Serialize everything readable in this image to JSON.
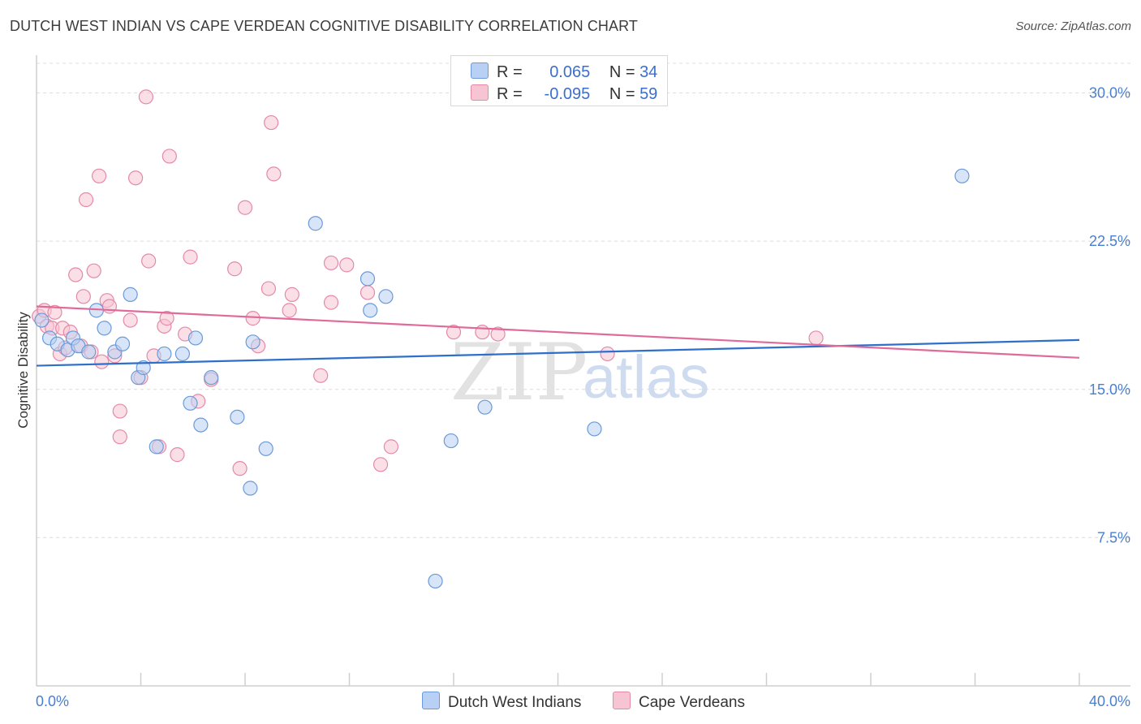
{
  "title": "DUTCH WEST INDIAN VS CAPE VERDEAN COGNITIVE DISABILITY CORRELATION CHART",
  "source": "Source: ZipAtlas.com",
  "colors": {
    "blue_fill": "#b8d0f3",
    "blue_stroke": "#6a9ad8",
    "blue_line": "#2f6fcc",
    "pink_fill": "#f7c4d4",
    "pink_stroke": "#e48aa8",
    "pink_line": "#e06a98",
    "grid": "#dcdcdc",
    "axis_text": "#4a7fd0"
  },
  "legend": {
    "r_label": "R =",
    "n_label": "N =",
    "rows": [
      {
        "r": "0.065",
        "n": "34"
      },
      {
        "r": "-0.095",
        "n": "59"
      }
    ]
  },
  "bottom_legend": [
    "Dutch West Indians",
    "Cape Verdeans"
  ],
  "watermark": {
    "zip": "ZIP",
    "atlas": "atlas"
  },
  "chart_data": {
    "type": "scatter",
    "title": "DUTCH WEST INDIAN VS CAPE VERDEAN COGNITIVE DISABILITY CORRELATION CHART",
    "xlabel": "",
    "ylabel": "Cognitive Disability",
    "xlim": [
      0,
      40
    ],
    "ylim": [
      0,
      31.5
    ],
    "x_tick_labels": [
      "0.0%",
      "40.0%"
    ],
    "y_ticks": [
      7.5,
      15.0,
      22.5,
      30.0
    ],
    "y_tick_labels": [
      "7.5%",
      "15.0%",
      "22.5%",
      "30.0%"
    ],
    "series": [
      {
        "name": "Dutch West Indians",
        "r": 0.065,
        "n": 34,
        "trend": {
          "x": [
            0,
            40
          ],
          "y": [
            16.2,
            17.5
          ]
        },
        "points": [
          [
            0.2,
            18.5
          ],
          [
            0.5,
            17.6
          ],
          [
            0.8,
            17.3
          ],
          [
            1.2,
            17.0
          ],
          [
            1.4,
            17.6
          ],
          [
            1.6,
            17.2
          ],
          [
            2.0,
            16.9
          ],
          [
            2.3,
            19.0
          ],
          [
            2.6,
            18.1
          ],
          [
            3.0,
            16.9
          ],
          [
            3.3,
            17.3
          ],
          [
            3.6,
            19.8
          ],
          [
            3.9,
            15.6
          ],
          [
            4.1,
            16.1
          ],
          [
            4.6,
            12.1
          ],
          [
            4.9,
            16.8
          ],
          [
            5.6,
            16.8
          ],
          [
            5.9,
            14.3
          ],
          [
            6.1,
            17.6
          ],
          [
            6.3,
            13.2
          ],
          [
            6.7,
            15.6
          ],
          [
            7.7,
            13.6
          ],
          [
            8.2,
            10.0
          ],
          [
            8.3,
            17.4
          ],
          [
            8.8,
            12.0
          ],
          [
            10.7,
            23.4
          ],
          [
            12.7,
            20.6
          ],
          [
            12.8,
            19.0
          ],
          [
            13.4,
            19.7
          ],
          [
            15.9,
            12.4
          ],
          [
            17.2,
            14.1
          ],
          [
            21.4,
            13.0
          ],
          [
            35.5,
            25.8
          ],
          [
            15.3,
            5.3
          ]
        ]
      },
      {
        "name": "Cape Verdeans",
        "r": -0.095,
        "n": 59,
        "trend": {
          "x": [
            0,
            40
          ],
          "y": [
            19.2,
            16.6
          ]
        },
        "points": [
          [
            0.1,
            18.7
          ],
          [
            0.3,
            19.0
          ],
          [
            0.4,
            18.2
          ],
          [
            0.6,
            18.1
          ],
          [
            0.7,
            18.9
          ],
          [
            0.9,
            16.8
          ],
          [
            1.0,
            18.1
          ],
          [
            1.1,
            17.1
          ],
          [
            1.3,
            17.9
          ],
          [
            1.5,
            20.8
          ],
          [
            1.7,
            17.2
          ],
          [
            1.8,
            19.7
          ],
          [
            1.9,
            24.6
          ],
          [
            2.1,
            16.9
          ],
          [
            2.2,
            21.0
          ],
          [
            2.4,
            25.8
          ],
          [
            2.5,
            16.4
          ],
          [
            2.7,
            19.5
          ],
          [
            2.8,
            19.2
          ],
          [
            3.0,
            16.7
          ],
          [
            3.2,
            12.6
          ],
          [
            3.2,
            13.9
          ],
          [
            3.6,
            18.5
          ],
          [
            3.8,
            25.7
          ],
          [
            4.0,
            15.6
          ],
          [
            4.2,
            29.8
          ],
          [
            4.3,
            21.5
          ],
          [
            4.5,
            16.7
          ],
          [
            4.7,
            12.1
          ],
          [
            4.9,
            18.2
          ],
          [
            5.0,
            18.6
          ],
          [
            5.1,
            26.8
          ],
          [
            5.4,
            11.7
          ],
          [
            5.7,
            17.8
          ],
          [
            5.9,
            21.7
          ],
          [
            6.2,
            14.4
          ],
          [
            6.7,
            15.5
          ],
          [
            7.6,
            21.1
          ],
          [
            7.8,
            11.0
          ],
          [
            8.0,
            24.2
          ],
          [
            8.3,
            18.6
          ],
          [
            8.5,
            17.2
          ],
          [
            8.9,
            20.1
          ],
          [
            9.0,
            28.5
          ],
          [
            9.1,
            25.9
          ],
          [
            9.7,
            19.0
          ],
          [
            9.8,
            19.8
          ],
          [
            10.9,
            15.7
          ],
          [
            11.3,
            19.4
          ],
          [
            11.3,
            21.4
          ],
          [
            11.9,
            21.3
          ],
          [
            12.7,
            19.9
          ],
          [
            13.2,
            11.2
          ],
          [
            13.6,
            12.1
          ],
          [
            16.0,
            17.9
          ],
          [
            17.1,
            17.9
          ],
          [
            17.7,
            17.8
          ],
          [
            21.9,
            16.8
          ],
          [
            29.9,
            17.6
          ]
        ]
      }
    ]
  }
}
